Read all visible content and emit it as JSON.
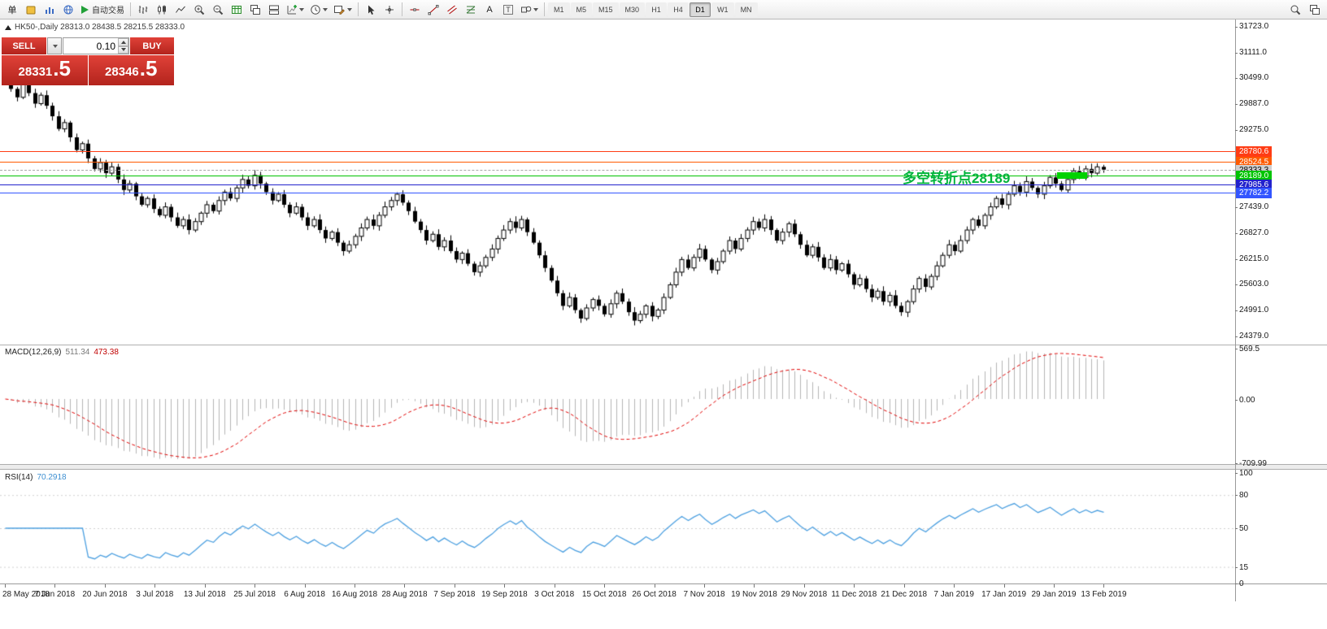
{
  "toolbar": {
    "new_order_label": "单",
    "autotrading_label": "自动交易",
    "text_tool_glyph": "A",
    "label_tool_glyph": "T",
    "timeframes": [
      "M1",
      "M5",
      "M15",
      "M30",
      "H1",
      "H4",
      "D1",
      "W1",
      "MN"
    ],
    "active_timeframe": "D1"
  },
  "chart": {
    "title": "HK50-,Daily 28313.0 28438.5 28215.5 28333.0",
    "symbol": "HK50-",
    "period": "Daily",
    "ohlc": {
      "open": "28313.0",
      "high": "28438.5",
      "low": "28215.5",
      "close": "28333.0"
    }
  },
  "one_click": {
    "sell_label": "SELL",
    "buy_label": "BUY",
    "volume": "0.10",
    "sell_price_main": "28331",
    "sell_price_pip": ".5",
    "buy_price_main": "28346",
    "buy_price_pip": ".5"
  },
  "annotation": {
    "text": "多空转折点28189",
    "color": "#00b43c"
  },
  "indicators": {
    "macd": {
      "name": "MACD(12,26,9)",
      "value_main": "511.34",
      "value_signal": "473.38"
    },
    "rsi": {
      "name": "RSI(14)",
      "value": "70.2918"
    }
  },
  "colors": {
    "trade_red": "#c3271f",
    "level_red": "#ff3c14",
    "level_orange": "#ff5a00",
    "level_green": "#00c400",
    "level_blue": "#2222cc",
    "macd_histogram": "#b5b5b5",
    "macd_signal": "#e00000",
    "rsi_line": "#4da0e0"
  },
  "chart_data": {
    "type": "candlestick",
    "symbol": "HK50-",
    "timeframe": "D1",
    "y_axis_labels": [
      "31723.0",
      "31111.0",
      "30499.0",
      "29887.0",
      "29275.0",
      "27439.0",
      "26827.0",
      "26215.0",
      "25603.0",
      "24991.0",
      "24379.0"
    ],
    "x_labels": [
      "28 May 2018",
      "7 Jun 2018",
      "20 Jun 2018",
      "3 Jul 2018",
      "13 Jul 2018",
      "25 Jul 2018",
      "6 Aug 2018",
      "16 Aug 2018",
      "28 Aug 2018",
      "7 Sep 2018",
      "19 Sep 2018",
      "3 Oct 2018",
      "15 Oct 2018",
      "26 Oct 2018",
      "7 Nov 2018",
      "19 Nov 2018",
      "29 Nov 2018",
      "11 Dec 2018",
      "21 Dec 2018",
      "7 Jan 2019",
      "17 Jan 2019",
      "29 Jan 2019",
      "13 Feb 2019"
    ],
    "levels": [
      {
        "price": 28780.6,
        "label": "28780.6",
        "line_color": "#ff3c14",
        "tag_bg": "#ff3c14",
        "tag_text": "#ffffff",
        "dashed": false
      },
      {
        "price": 28524.5,
        "label": "28524.5",
        "line_color": "#ff5a00",
        "tag_bg": "#ff5a00",
        "tag_text": "#ffffff",
        "dashed": false
      },
      {
        "price": 28333.3,
        "label": "28333.3",
        "line_color": "#aaaaaa",
        "tag_bg": "#cfcfcf",
        "tag_text": "#000000",
        "dashed": true
      },
      {
        "price": 28189.0,
        "label": "28189.0",
        "line_color": "#00c400",
        "tag_bg": "#00c400",
        "tag_text": "#ffffff",
        "dashed": false
      },
      {
        "price": 27985.6,
        "label": "27985.6",
        "line_color": "#2222cc",
        "tag_bg": "#2222cc",
        "tag_text": "#ffffff",
        "dashed": false
      },
      {
        "price": 27782.2,
        "label": "27782.2",
        "line_color": "#3355ff",
        "tag_bg": "#3355ff",
        "tag_text": "#ffffff",
        "dashed": false
      }
    ],
    "highlight_segment": {
      "price": 28189.0,
      "color": "#00d200"
    },
    "macd_scale": [
      "569.5",
      "0.00",
      "-709.99"
    ],
    "rsi_scale": [
      "100",
      "80",
      "50",
      "15",
      "0"
    ],
    "closes": [
      30450,
      30250,
      30050,
      30400,
      30150,
      29900,
      30100,
      29850,
      29600,
      29300,
      29450,
      29100,
      28800,
      28950,
      28600,
      28350,
      28500,
      28250,
      28400,
      28100,
      27850,
      28000,
      27700,
      27500,
      27650,
      27400,
      27250,
      27450,
      27200,
      27000,
      27150,
      26900,
      27100,
      27300,
      27500,
      27350,
      27600,
      27800,
      27650,
      27900,
      28100,
      27950,
      28200,
      28000,
      27800,
      27600,
      27750,
      27500,
      27300,
      27450,
      27200,
      27000,
      27150,
      26900,
      26700,
      26850,
      26600,
      26400,
      26550,
      26750,
      26950,
      27150,
      27000,
      27250,
      27450,
      27600,
      27750,
      27550,
      27350,
      27100,
      26900,
      26650,
      26800,
      26500,
      26650,
      26400,
      26200,
      26350,
      26100,
      25900,
      26050,
      26250,
      26450,
      26700,
      26900,
      27100,
      26950,
      27150,
      26850,
      26600,
      26300,
      26000,
      25700,
      25400,
      25100,
      25300,
      25000,
      24800,
      25050,
      25250,
      25100,
      24900,
      25150,
      25400,
      25200,
      24950,
      24750,
      24900,
      25100,
      24850,
      25000,
      25300,
      25600,
      25900,
      26200,
      26000,
      26250,
      26450,
      26200,
      25950,
      26150,
      26400,
      26650,
      26450,
      26700,
      26900,
      27100,
      26950,
      27150,
      26900,
      26650,
      26850,
      27050,
      26800,
      26550,
      26300,
      26500,
      26250,
      26000,
      26200,
      25950,
      26100,
      25850,
      25600,
      25750,
      25500,
      25300,
      25450,
      25200,
      25350,
      25100,
      24950,
      25200,
      25500,
      25750,
      25550,
      25800,
      26050,
      26300,
      26550,
      26400,
      26650,
      26900,
      27150,
      27000,
      27250,
      27450,
      27650,
      27500,
      27750,
      27950,
      27800,
      28050,
      27900,
      27750,
      27950,
      28150,
      28000,
      27850,
      28100,
      28300,
      28150,
      28350,
      28250,
      28400,
      28333
    ]
  }
}
